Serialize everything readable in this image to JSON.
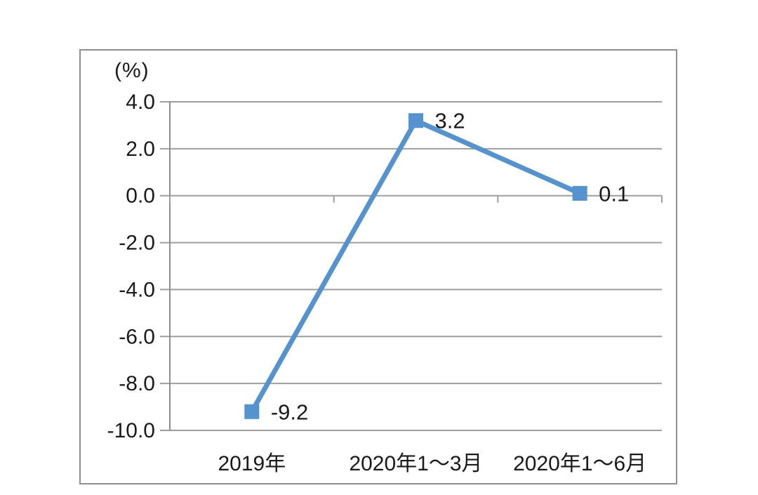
{
  "page": {
    "background": "#ffffff"
  },
  "chart_data": {
    "type": "line",
    "title": "",
    "unit_label": "(%)",
    "categories": [
      "2019年",
      "2020年1～3月",
      "2020年1～6月"
    ],
    "series": [
      {
        "values": [
          -9.2,
          3.2,
          0.1
        ],
        "color": "#5592CE",
        "marker": "square",
        "line_width": 7
      }
    ],
    "data_labels": [
      "-9.2",
      "3.2",
      "0.1"
    ],
    "y_ticks": [
      4.0,
      2.0,
      0.0,
      -2.0,
      -4.0,
      -6.0,
      -8.0,
      -10.0
    ],
    "y_tick_labels": [
      "4.0",
      "2.0",
      "0.0",
      "-2.0",
      "-4.0",
      "-6.0",
      "-8.0",
      "-10.0"
    ],
    "ylim": [
      -10.0,
      4.0
    ],
    "grid": true,
    "legend": "none",
    "gridline_color": "#9e9e9e",
    "axis_color": "#8f8f8f",
    "text_color": "#1a1a1a",
    "frame_border_color": "#8f8f8f"
  }
}
